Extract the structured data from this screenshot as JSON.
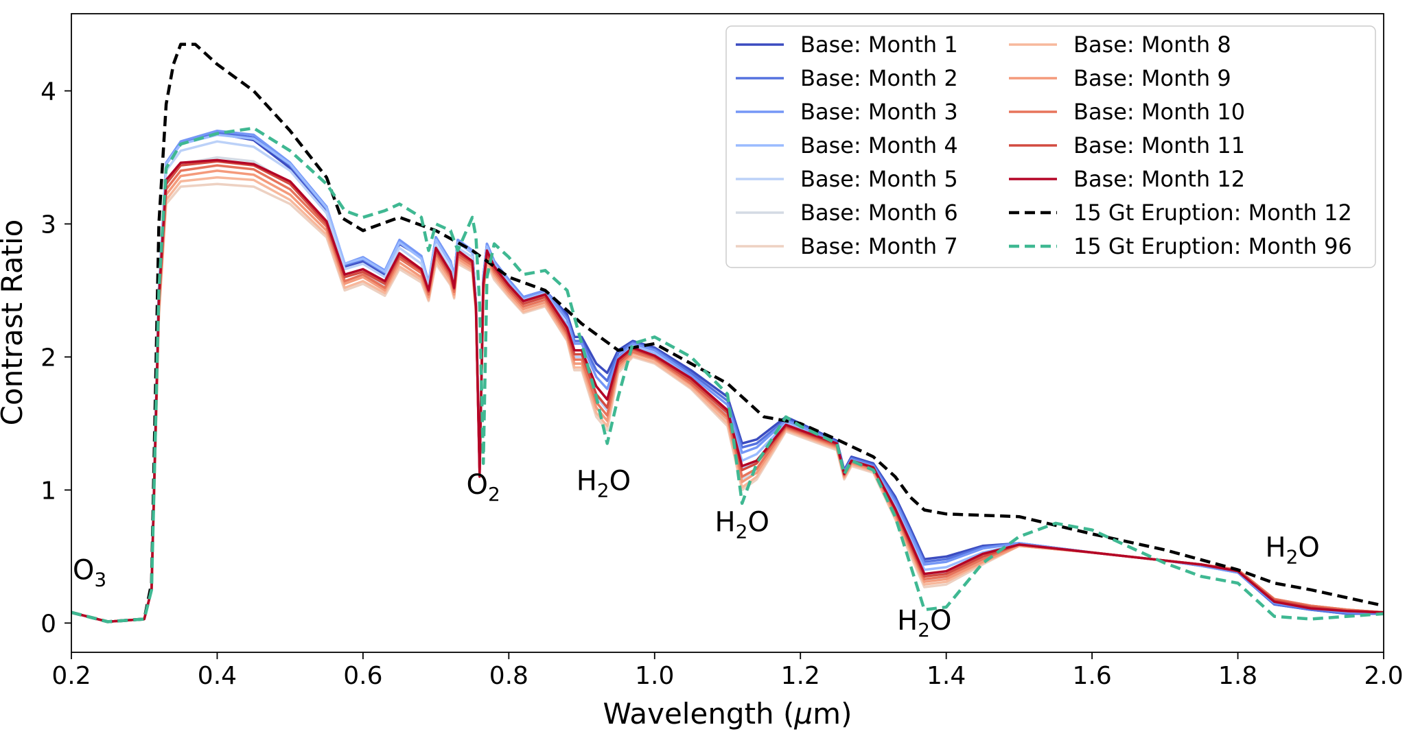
{
  "chart_data": {
    "type": "line",
    "title": "",
    "xlabel": "Wavelength (μm)",
    "xlabel_main": "Wavelength (",
    "xlabel_mu": "μ",
    "xlabel_unit": "m)",
    "ylabel": "Contrast Ratio",
    "xlim": [
      0.2,
      2.0
    ],
    "ylim": [
      -0.22,
      4.58
    ],
    "x_ticks": [
      0.2,
      0.4,
      0.6,
      0.8,
      1.0,
      1.2,
      1.4,
      1.6,
      1.8,
      2.0
    ],
    "x_tick_labels": [
      "0.2",
      "0.4",
      "0.6",
      "0.8",
      "1.0",
      "1.2",
      "1.4",
      "1.6",
      "1.8",
      "2.0"
    ],
    "y_ticks": [
      0,
      1,
      2,
      3,
      4
    ],
    "y_tick_labels": [
      "0",
      "1",
      "2",
      "3",
      "4"
    ],
    "grid": false,
    "legend_position": "top-right",
    "legend_columns": 2,
    "annotations": [
      {
        "base": "O",
        "sub": "3",
        "x": 0.225,
        "y": 0.33
      },
      {
        "base": "O",
        "sub": "2",
        "x": 0.765,
        "y": 0.97
      },
      {
        "base": "H",
        "sub": "2",
        "tail": "O",
        "x": 0.93,
        "y": 1.0
      },
      {
        "base": "H",
        "sub": "2",
        "tail": "O",
        "x": 1.12,
        "y": 0.69
      },
      {
        "base": "H",
        "sub": "2",
        "tail": "O",
        "x": 1.37,
        "y": -0.05
      },
      {
        "base": "H",
        "sub": "2",
        "tail": "O",
        "x": 1.875,
        "y": 0.5
      }
    ],
    "base_x": [
      0.2,
      0.25,
      0.3,
      0.31,
      0.32,
      0.33,
      0.35,
      0.4,
      0.45,
      0.5,
      0.55,
      0.575,
      0.6,
      0.63,
      0.65,
      0.68,
      0.69,
      0.7,
      0.72,
      0.725,
      0.73,
      0.75,
      0.755,
      0.76,
      0.765,
      0.77,
      0.78,
      0.8,
      0.82,
      0.85,
      0.88,
      0.89,
      0.9,
      0.92,
      0.935,
      0.95,
      0.97,
      1.0,
      1.05,
      1.1,
      1.12,
      1.14,
      1.18,
      1.2,
      1.25,
      1.26,
      1.27,
      1.3,
      1.33,
      1.35,
      1.37,
      1.4,
      1.45,
      1.5,
      1.6,
      1.7,
      1.75,
      1.8,
      1.85,
      1.9,
      1.95,
      2.0
    ],
    "series": [
      {
        "name": "Base: Month 1",
        "color": "#3b4cc0",
        "dash": false,
        "values": [
          0.08,
          0.01,
          0.03,
          0.25,
          2.5,
          3.45,
          3.6,
          3.68,
          3.63,
          3.42,
          3.1,
          2.68,
          2.72,
          2.62,
          2.85,
          2.75,
          2.55,
          2.9,
          2.72,
          2.6,
          2.88,
          2.8,
          2.4,
          1.15,
          2.6,
          2.85,
          2.72,
          2.58,
          2.45,
          2.5,
          2.32,
          2.15,
          2.15,
          1.95,
          1.88,
          2.05,
          2.12,
          2.07,
          1.9,
          1.7,
          1.35,
          1.38,
          1.55,
          1.5,
          1.37,
          1.15,
          1.25,
          1.2,
          0.95,
          0.72,
          0.48,
          0.5,
          0.58,
          0.6,
          0.53,
          0.47,
          0.43,
          0.38,
          0.14,
          0.1,
          0.07,
          0.07
        ]
      },
      {
        "name": "Base: Month 2",
        "color": "#5572df",
        "dash": false,
        "values": [
          0.08,
          0.01,
          0.03,
          0.25,
          2.5,
          3.45,
          3.61,
          3.69,
          3.65,
          3.44,
          3.11,
          2.69,
          2.73,
          2.63,
          2.86,
          2.75,
          2.55,
          2.9,
          2.72,
          2.6,
          2.88,
          2.8,
          2.4,
          1.15,
          2.6,
          2.85,
          2.72,
          2.58,
          2.45,
          2.5,
          2.3,
          2.12,
          2.12,
          1.9,
          1.82,
          2.03,
          2.11,
          2.06,
          1.88,
          1.67,
          1.32,
          1.35,
          1.53,
          1.49,
          1.36,
          1.14,
          1.24,
          1.19,
          0.93,
          0.7,
          0.46,
          0.48,
          0.57,
          0.6,
          0.53,
          0.47,
          0.43,
          0.38,
          0.14,
          0.1,
          0.07,
          0.07
        ]
      },
      {
        "name": "Base: Month 3",
        "color": "#7597f6",
        "dash": false,
        "values": [
          0.08,
          0.01,
          0.03,
          0.25,
          2.5,
          3.46,
          3.62,
          3.7,
          3.67,
          3.46,
          3.13,
          2.7,
          2.75,
          2.65,
          2.88,
          2.76,
          2.56,
          2.9,
          2.72,
          2.6,
          2.88,
          2.8,
          2.4,
          1.15,
          2.6,
          2.85,
          2.72,
          2.58,
          2.45,
          2.5,
          2.28,
          2.1,
          2.1,
          1.85,
          1.76,
          2.0,
          2.1,
          2.05,
          1.86,
          1.64,
          1.28,
          1.32,
          1.52,
          1.48,
          1.35,
          1.13,
          1.23,
          1.18,
          0.91,
          0.68,
          0.44,
          0.46,
          0.56,
          0.6,
          0.53,
          0.47,
          0.43,
          0.38,
          0.15,
          0.11,
          0.08,
          0.08
        ]
      },
      {
        "name": "Base: Month 4",
        "color": "#9abbff",
        "dash": false,
        "values": [
          0.08,
          0.01,
          0.03,
          0.25,
          2.5,
          3.45,
          3.6,
          3.67,
          3.64,
          3.45,
          3.12,
          2.7,
          2.74,
          2.64,
          2.86,
          2.74,
          2.55,
          2.88,
          2.7,
          2.58,
          2.86,
          2.78,
          2.4,
          1.15,
          2.58,
          2.83,
          2.7,
          2.56,
          2.43,
          2.48,
          2.24,
          2.05,
          2.05,
          1.78,
          1.68,
          1.98,
          2.08,
          2.03,
          1.84,
          1.6,
          1.22,
          1.27,
          1.5,
          1.46,
          1.34,
          1.12,
          1.22,
          1.17,
          0.88,
          0.64,
          0.4,
          0.42,
          0.53,
          0.59,
          0.53,
          0.47,
          0.44,
          0.39,
          0.17,
          0.12,
          0.09,
          0.08
        ]
      },
      {
        "name": "Base: Month 5",
        "color": "#bbd1f8",
        "dash": false,
        "values": [
          0.08,
          0.01,
          0.03,
          0.25,
          2.45,
          3.4,
          3.55,
          3.62,
          3.58,
          3.4,
          3.08,
          2.66,
          2.7,
          2.6,
          2.82,
          2.7,
          2.52,
          2.84,
          2.66,
          2.55,
          2.82,
          2.75,
          2.38,
          1.15,
          2.55,
          2.8,
          2.67,
          2.53,
          2.4,
          2.45,
          2.2,
          2.0,
          2.0,
          1.7,
          1.6,
          1.95,
          2.06,
          2.01,
          1.82,
          1.56,
          1.16,
          1.22,
          1.48,
          1.44,
          1.33,
          1.11,
          1.21,
          1.16,
          0.85,
          0.6,
          0.36,
          0.38,
          0.5,
          0.59,
          0.53,
          0.47,
          0.44,
          0.4,
          0.18,
          0.13,
          0.1,
          0.08
        ]
      },
      {
        "name": "Base: Month 6",
        "color": "#d4dae4",
        "dash": false,
        "values": [
          0.08,
          0.01,
          0.03,
          0.25,
          2.4,
          3.3,
          3.45,
          3.5,
          3.47,
          3.3,
          3.0,
          2.6,
          2.64,
          2.54,
          2.75,
          2.64,
          2.48,
          2.78,
          2.6,
          2.5,
          2.77,
          2.7,
          2.36,
          1.15,
          2.52,
          2.76,
          2.63,
          2.5,
          2.37,
          2.42,
          2.17,
          1.95,
          1.95,
          1.62,
          1.52,
          1.92,
          2.04,
          1.99,
          1.8,
          1.52,
          1.08,
          1.15,
          1.46,
          1.42,
          1.32,
          1.1,
          1.2,
          1.15,
          0.82,
          0.56,
          0.32,
          0.34,
          0.47,
          0.58,
          0.53,
          0.47,
          0.44,
          0.4,
          0.18,
          0.13,
          0.1,
          0.08
        ]
      },
      {
        "name": "Base: Month 7",
        "color": "#edd1c2",
        "dash": false,
        "values": [
          0.08,
          0.01,
          0.03,
          0.25,
          2.3,
          3.15,
          3.28,
          3.3,
          3.28,
          3.15,
          2.9,
          2.5,
          2.55,
          2.46,
          2.66,
          2.56,
          2.42,
          2.7,
          2.54,
          2.44,
          2.7,
          2.64,
          2.33,
          1.15,
          2.48,
          2.7,
          2.58,
          2.45,
          2.33,
          2.38,
          2.12,
          1.9,
          1.9,
          1.55,
          1.45,
          1.88,
          2.0,
          1.95,
          1.76,
          1.48,
          1.0,
          1.08,
          1.44,
          1.4,
          1.3,
          1.08,
          1.18,
          1.13,
          0.78,
          0.52,
          0.27,
          0.29,
          0.44,
          0.58,
          0.53,
          0.47,
          0.44,
          0.4,
          0.18,
          0.13,
          0.1,
          0.08
        ]
      },
      {
        "name": "Base: Month 8",
        "color": "#f7b89c",
        "dash": false,
        "values": [
          0.08,
          0.01,
          0.03,
          0.25,
          2.32,
          3.18,
          3.32,
          3.35,
          3.33,
          3.18,
          2.92,
          2.52,
          2.57,
          2.48,
          2.68,
          2.58,
          2.43,
          2.72,
          2.55,
          2.45,
          2.72,
          2.65,
          2.34,
          1.15,
          2.49,
          2.72,
          2.6,
          2.46,
          2.34,
          2.39,
          2.13,
          1.92,
          1.92,
          1.58,
          1.48,
          1.9,
          2.01,
          1.96,
          1.77,
          1.5,
          1.02,
          1.1,
          1.45,
          1.41,
          1.31,
          1.09,
          1.19,
          1.14,
          0.79,
          0.54,
          0.29,
          0.31,
          0.45,
          0.58,
          0.53,
          0.47,
          0.44,
          0.4,
          0.18,
          0.13,
          0.1,
          0.08
        ]
      },
      {
        "name": "Base: Month 9",
        "color": "#f49a7b",
        "dash": false,
        "values": [
          0.08,
          0.01,
          0.03,
          0.25,
          2.35,
          3.22,
          3.36,
          3.4,
          3.37,
          3.22,
          2.95,
          2.55,
          2.6,
          2.5,
          2.71,
          2.6,
          2.45,
          2.75,
          2.58,
          2.47,
          2.74,
          2.67,
          2.35,
          1.15,
          2.5,
          2.74,
          2.62,
          2.48,
          2.36,
          2.41,
          2.15,
          1.95,
          1.95,
          1.62,
          1.52,
          1.92,
          2.03,
          1.98,
          1.79,
          1.53,
          1.06,
          1.13,
          1.46,
          1.42,
          1.32,
          1.1,
          1.2,
          1.15,
          0.81,
          0.56,
          0.31,
          0.33,
          0.46,
          0.58,
          0.53,
          0.47,
          0.44,
          0.4,
          0.18,
          0.13,
          0.1,
          0.08
        ]
      },
      {
        "name": "Base: Month 10",
        "color": "#e7745b",
        "dash": false,
        "values": [
          0.08,
          0.01,
          0.03,
          0.25,
          2.38,
          3.26,
          3.4,
          3.44,
          3.41,
          3.26,
          2.98,
          2.57,
          2.62,
          2.52,
          2.74,
          2.63,
          2.47,
          2.78,
          2.6,
          2.49,
          2.76,
          2.69,
          2.36,
          1.15,
          2.52,
          2.76,
          2.64,
          2.5,
          2.38,
          2.43,
          2.17,
          1.98,
          1.98,
          1.66,
          1.56,
          1.94,
          2.04,
          1.99,
          1.8,
          1.55,
          1.1,
          1.16,
          1.47,
          1.43,
          1.33,
          1.11,
          1.21,
          1.16,
          0.83,
          0.58,
          0.33,
          0.35,
          0.48,
          0.59,
          0.53,
          0.47,
          0.44,
          0.4,
          0.18,
          0.13,
          0.1,
          0.08
        ]
      },
      {
        "name": "Base: Month 11",
        "color": "#d24b40",
        "dash": false,
        "values": [
          0.08,
          0.01,
          0.03,
          0.25,
          2.42,
          3.3,
          3.44,
          3.47,
          3.44,
          3.3,
          3.0,
          2.6,
          2.64,
          2.55,
          2.76,
          2.65,
          2.49,
          2.8,
          2.62,
          2.51,
          2.78,
          2.71,
          2.37,
          1.15,
          2.54,
          2.78,
          2.66,
          2.52,
          2.4,
          2.45,
          2.19,
          2.02,
          2.02,
          1.72,
          1.62,
          1.96,
          2.06,
          2.0,
          1.82,
          1.58,
          1.15,
          1.2,
          1.48,
          1.44,
          1.34,
          1.12,
          1.22,
          1.17,
          0.85,
          0.6,
          0.35,
          0.37,
          0.5,
          0.59,
          0.53,
          0.47,
          0.44,
          0.39,
          0.17,
          0.12,
          0.09,
          0.08
        ]
      },
      {
        "name": "Base: Month 12",
        "color": "#b40426",
        "dash": false,
        "values": [
          0.08,
          0.01,
          0.03,
          0.25,
          2.45,
          3.33,
          3.46,
          3.48,
          3.45,
          3.32,
          3.02,
          2.62,
          2.66,
          2.57,
          2.78,
          2.66,
          2.5,
          2.82,
          2.64,
          2.52,
          2.8,
          2.72,
          2.38,
          1.1,
          2.55,
          2.8,
          2.68,
          2.54,
          2.42,
          2.47,
          2.22,
          2.05,
          2.05,
          1.78,
          1.68,
          1.98,
          2.07,
          2.01,
          1.84,
          1.6,
          1.18,
          1.22,
          1.49,
          1.45,
          1.35,
          1.12,
          1.22,
          1.17,
          0.86,
          0.62,
          0.37,
          0.39,
          0.52,
          0.59,
          0.53,
          0.47,
          0.44,
          0.39,
          0.16,
          0.11,
          0.09,
          0.08
        ]
      },
      {
        "name": "15 Gt Eruption: Month 12",
        "color": "#000000",
        "dash": true,
        "x": [
          0.2,
          0.25,
          0.3,
          0.31,
          0.32,
          0.33,
          0.34,
          0.35,
          0.37,
          0.4,
          0.45,
          0.5,
          0.55,
          0.57,
          0.6,
          0.65,
          0.7,
          0.75,
          0.8,
          0.85,
          0.9,
          0.95,
          1.0,
          1.05,
          1.1,
          1.15,
          1.2,
          1.25,
          1.3,
          1.33,
          1.35,
          1.37,
          1.4,
          1.5,
          1.6,
          1.7,
          1.8,
          1.85,
          1.9,
          2.0
        ],
        "values": [
          0.08,
          0.01,
          0.03,
          0.3,
          3.0,
          3.9,
          4.2,
          4.35,
          4.35,
          4.2,
          4.0,
          3.7,
          3.35,
          3.05,
          2.95,
          3.05,
          2.95,
          2.8,
          2.6,
          2.5,
          2.25,
          2.05,
          2.1,
          1.95,
          1.8,
          1.55,
          1.5,
          1.38,
          1.25,
          1.1,
          0.95,
          0.85,
          0.82,
          0.8,
          0.67,
          0.55,
          0.4,
          0.3,
          0.25,
          0.13
        ]
      },
      {
        "name": "15 Gt Eruption: Month 96",
        "color": "#3fb892",
        "dash": true,
        "x": [
          0.2,
          0.25,
          0.3,
          0.31,
          0.32,
          0.33,
          0.35,
          0.4,
          0.45,
          0.5,
          0.55,
          0.575,
          0.6,
          0.63,
          0.65,
          0.68,
          0.69,
          0.7,
          0.72,
          0.73,
          0.75,
          0.755,
          0.76,
          0.765,
          0.77,
          0.78,
          0.8,
          0.82,
          0.85,
          0.88,
          0.89,
          0.9,
          0.92,
          0.935,
          0.95,
          0.97,
          1.0,
          1.05,
          1.1,
          1.12,
          1.14,
          1.18,
          1.2,
          1.25,
          1.26,
          1.27,
          1.3,
          1.33,
          1.35,
          1.37,
          1.4,
          1.45,
          1.5,
          1.55,
          1.6,
          1.7,
          1.75,
          1.8,
          1.85,
          1.9,
          1.95,
          2.0
        ],
        "values": [
          0.08,
          0.01,
          0.03,
          0.25,
          2.5,
          3.42,
          3.6,
          3.68,
          3.72,
          3.55,
          3.3,
          3.1,
          3.05,
          3.1,
          3.15,
          3.05,
          2.8,
          3.0,
          2.95,
          2.8,
          3.05,
          2.9,
          2.4,
          1.2,
          2.6,
          2.85,
          2.75,
          2.62,
          2.65,
          2.5,
          2.3,
          2.1,
          1.7,
          1.35,
          1.7,
          2.1,
          2.15,
          2.0,
          1.72,
          0.9,
          1.2,
          1.55,
          1.48,
          1.35,
          1.12,
          1.22,
          1.15,
          0.8,
          0.45,
          0.1,
          0.12,
          0.45,
          0.65,
          0.75,
          0.7,
          0.45,
          0.35,
          0.3,
          0.05,
          0.03,
          0.05,
          0.07
        ]
      }
    ]
  }
}
